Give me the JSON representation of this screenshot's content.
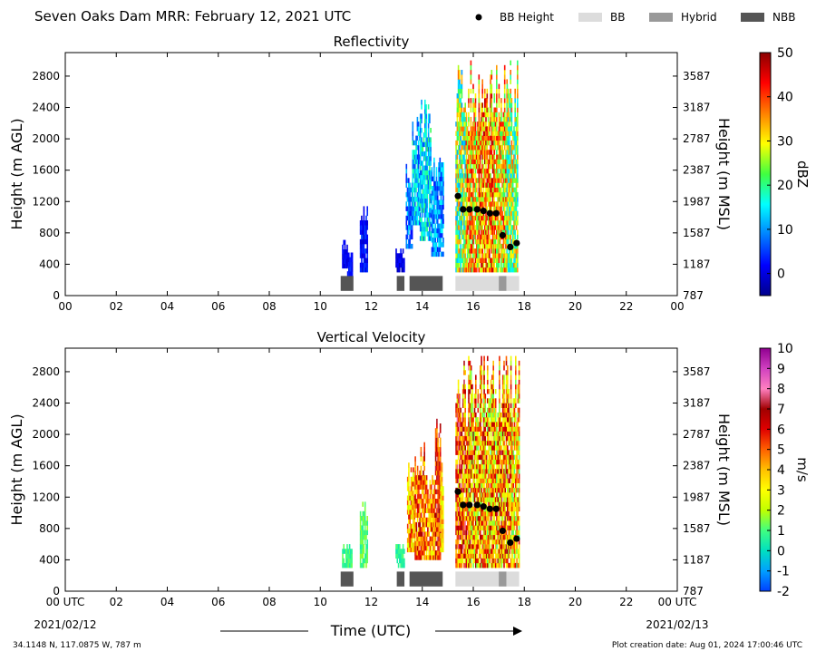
{
  "header": {
    "title": "Seven Oaks Dam MRR:  February 12, 2021 UTC",
    "legend": [
      {
        "label": "BB Height",
        "kind": "dot",
        "color": "#000000"
      },
      {
        "label": "BB",
        "kind": "rect",
        "color": "#dcdcdc"
      },
      {
        "label": "Hybrid",
        "kind": "rect",
        "color": "#999999"
      },
      {
        "label": "NBB",
        "kind": "rect",
        "color": "#555555"
      }
    ]
  },
  "footer": {
    "coords": "34.1148 N, 117.0875 W, 787 m",
    "creation": "Plot creation date: Aug 01, 2024 17:00:46 UTC",
    "time_label": "Time (UTC)",
    "date_left": "2021/02/12",
    "date_right": "2021/02/13"
  },
  "chart_data": [
    {
      "type": "heatmap",
      "title": "Reflectivity",
      "ylabel": "Height (m AGL)",
      "y2label": "Height (m MSL)",
      "colorbar_label": "dBZ",
      "xlim": [
        0,
        24
      ],
      "ylim": [
        0,
        3100
      ],
      "x_ticks": [
        "00",
        "02",
        "04",
        "06",
        "08",
        "10",
        "12",
        "14",
        "16",
        "18",
        "20",
        "22",
        "00"
      ],
      "y_ticks": [
        0,
        400,
        800,
        1200,
        1600,
        2000,
        2400,
        2800
      ],
      "y2_ticks": [
        787,
        1187,
        1587,
        1987,
        2387,
        2787,
        3187,
        3587
      ],
      "colorbar": {
        "range": [
          -5,
          50
        ],
        "ticks": [
          0,
          10,
          20,
          30,
          40,
          50
        ],
        "colors": [
          "#00008b",
          "#0000ff",
          "#0080ff",
          "#00ffff",
          "#40ff40",
          "#ffff00",
          "#ff8000",
          "#ff0000",
          "#8b0000"
        ]
      },
      "bb_height": {
        "x": [
          15.4,
          15.6,
          15.85,
          16.15,
          16.4,
          16.65,
          16.9,
          17.15,
          17.45,
          17.7
        ],
        "y": [
          1270,
          1100,
          1100,
          1100,
          1080,
          1050,
          1050,
          770,
          620,
          670
        ]
      },
      "bands": [
        {
          "type": "NBB",
          "x0": 10.8,
          "x1": 11.3
        },
        {
          "type": "NBB",
          "x0": 13.0,
          "x1": 13.3
        },
        {
          "type": "NBB",
          "x0": 13.5,
          "x1": 14.8
        },
        {
          "type": "BB",
          "x0": 15.3,
          "x1": 17.0
        },
        {
          "type": "Hybrid",
          "x0": 17.0,
          "x1": 17.3
        },
        {
          "type": "BB",
          "x0": 17.3,
          "x1": 17.8
        }
      ]
    },
    {
      "type": "heatmap",
      "title": "Vertical Velocity",
      "ylabel": "Height (m AGL)",
      "y2label": "Height (m MSL)",
      "colorbar_label": "m/s",
      "xlim": [
        0,
        24
      ],
      "ylim": [
        0,
        3100
      ],
      "x_ticks": [
        "00 UTC",
        "02",
        "04",
        "06",
        "08",
        "10",
        "12",
        "14",
        "16",
        "18",
        "20",
        "22",
        "00 UTC"
      ],
      "y_ticks": [
        0,
        400,
        800,
        1200,
        1600,
        2000,
        2400,
        2800
      ],
      "y2_ticks": [
        787,
        1187,
        1587,
        1987,
        2387,
        2787,
        3187,
        3587
      ],
      "colorbar": {
        "range": [
          -2,
          10
        ],
        "ticks": [
          -2,
          -1,
          0,
          1,
          2,
          3,
          4,
          5,
          6,
          7,
          8,
          9,
          10
        ],
        "colors": [
          "#0040ff",
          "#00a0ff",
          "#00e0c0",
          "#40ff80",
          "#c0ff00",
          "#ffff00",
          "#ffc000",
          "#ff6000",
          "#e00000",
          "#a00000",
          "#ff80c0",
          "#d040c0",
          "#900090"
        ]
      },
      "bb_height": {
        "x": [
          15.4,
          15.6,
          15.85,
          16.15,
          16.4,
          16.65,
          16.9,
          17.15,
          17.45,
          17.7
        ],
        "y": [
          1270,
          1100,
          1100,
          1100,
          1080,
          1050,
          1050,
          770,
          620,
          670
        ]
      },
      "bands": [
        {
          "type": "NBB",
          "x0": 10.8,
          "x1": 11.3
        },
        {
          "type": "NBB",
          "x0": 13.0,
          "x1": 13.3
        },
        {
          "type": "NBB",
          "x0": 13.5,
          "x1": 14.8
        },
        {
          "type": "BB",
          "x0": 15.3,
          "x1": 17.0
        },
        {
          "type": "Hybrid",
          "x0": 17.0,
          "x1": 17.3
        },
        {
          "type": "BB",
          "x0": 17.3,
          "x1": 17.8
        }
      ]
    }
  ]
}
